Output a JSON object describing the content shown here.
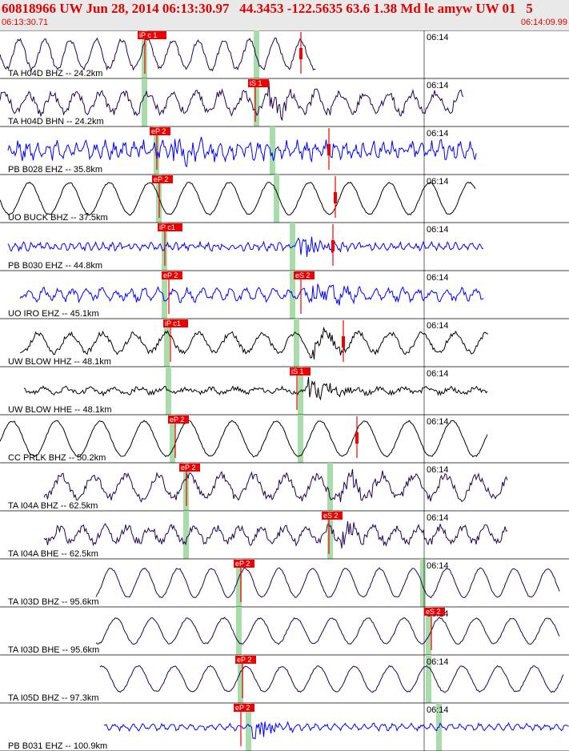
{
  "header": {
    "title": "60818966 UW Jun 28, 2014 06:13:30.97   44.3453 -122.5635 63.6 1.38 Md le amyw UW 01   5",
    "start_time": "06:13:30.71",
    "end_time": "06:14:09.99"
  },
  "time_mark": "06:14",
  "colors": {
    "header_bg": "#e9e9e9",
    "pick_red": "#ee0000",
    "window_green": "#a8dca8",
    "trace_blue": "#0000ff",
    "trace_purple": "#220055",
    "trace_black": "#000000"
  },
  "traces": [
    {
      "label": "TA H04D BHZ -- 24.2km",
      "color": "#220055",
      "period": 32,
      "amp": 18,
      "noise": 3,
      "start": 0,
      "end": 395,
      "picks": [
        {
          "label": "iP c 1",
          "x": 180,
          "w": 12
        },
        {
          "label": "",
          "x": 375,
          "w": 0
        }
      ],
      "windows": [
        180,
        320
      ],
      "burst": 0,
      "tmx": 530
    },
    {
      "label": "TA H04D BHN -- 24.2km",
      "color": "#220055",
      "period": 30,
      "amp": 12,
      "noise": 5,
      "start": 0,
      "end": 580,
      "picks": [
        {
          "label": "iS 1",
          "x": 318,
          "w": 12
        }
      ],
      "windows": [
        180,
        320
      ],
      "burst": 335,
      "tmx": 530
    },
    {
      "label": "PB B028 EHZ -- 35.8km",
      "color": "#0000ff",
      "period": 12,
      "amp": 7,
      "noise": 7,
      "start": 10,
      "end": 595,
      "picks": [
        {
          "label": "eP 2",
          "x": 195,
          "w": 12
        },
        {
          "label": "",
          "x": 410,
          "w": 0
        }
      ],
      "windows": [
        195,
        340
      ],
      "burst": 215,
      "tmx": 530
    },
    {
      "label": "UO BUCK BHZ -- 37.5km",
      "color": "#000000",
      "period": 50,
      "amp": 20,
      "noise": 1,
      "start": 0,
      "end": 595,
      "picks": [
        {
          "label": "eP 2",
          "x": 198,
          "w": 12
        },
        {
          "label": "",
          "x": 418,
          "w": 0
        }
      ],
      "windows": [
        198,
        345
      ],
      "burst": 0,
      "tmx": 530
    },
    {
      "label": "PB B030 EHZ -- 44.8km",
      "color": "#0000ff",
      "period": 10,
      "amp": 3,
      "noise": 3,
      "start": 10,
      "end": 605,
      "picks": [
        {
          "label": "iP c1",
          "x": 205,
          "w": 12
        },
        {
          "label": "",
          "x": 415,
          "w": 0
        }
      ],
      "windows": [
        205,
        365
      ],
      "burst": 370,
      "tmx": 530
    },
    {
      "label": "UO IRO EHZ -- 45.1km",
      "color": "#0000ff",
      "period": 18,
      "amp": 6,
      "noise": 4,
      "start": 25,
      "end": 605,
      "picks": [
        {
          "label": "eP 2",
          "x": 210,
          "w": 12
        },
        {
          "label": "eS 2",
          "x": 375,
          "w": 12
        }
      ],
      "windows": [
        205,
        365
      ],
      "burst": 390,
      "tmx": 530
    },
    {
      "label": "UW BLOW HHZ -- 48.1km",
      "color": "#000000",
      "period": 40,
      "amp": 12,
      "noise": 3,
      "start": 25,
      "end": 610,
      "picks": [
        {
          "label": "iP c1",
          "x": 212,
          "w": 12
        },
        {
          "label": "",
          "x": 428,
          "w": 0
        }
      ],
      "windows": [
        208,
        370
      ],
      "burst": 385,
      "tmx": 530
    },
    {
      "label": "UW BLOW HHE -- 48.1km",
      "color": "#000000",
      "period": 30,
      "amp": 3,
      "noise": 3,
      "start": 30,
      "end": 610,
      "picks": [
        {
          "label": "iS 1",
          "x": 370,
          "w": 12
        }
      ],
      "windows": [
        210,
        375
      ],
      "burst": 385,
      "tmx": 530
    },
    {
      "label": "CC PRLK BHZ -- 50.2km",
      "color": "#000000",
      "period": 55,
      "amp": 22,
      "noise": 1,
      "start": 0,
      "end": 610,
      "picks": [
        {
          "label": "eP 2",
          "x": 218,
          "w": 12
        },
        {
          "label": "",
          "x": 445,
          "w": 0
        }
      ],
      "windows": [
        215,
        375
      ],
      "burst": 0,
      "tmx": 530
    },
    {
      "label": "TA I04A BHZ -- 62.5km",
      "color": "#220055",
      "period": 40,
      "amp": 14,
      "noise": 5,
      "start": 55,
      "end": 635,
      "picks": [
        {
          "label": "eP 2",
          "x": 232,
          "w": 12
        }
      ],
      "windows": [
        232,
        412
      ],
      "burst": 425,
      "tmx": 530
    },
    {
      "label": "TA I04A BHE -- 62.5km",
      "color": "#220055",
      "period": 28,
      "amp": 9,
      "noise": 5,
      "start": 55,
      "end": 635,
      "picks": [
        {
          "label": "eS 2",
          "x": 410,
          "w": 12
        }
      ],
      "windows": [
        232,
        412
      ],
      "burst": 425,
      "tmx": 530
    },
    {
      "label": "TA I03D BHZ -- 95.6km",
      "color": "#220055",
      "period": 42,
      "amp": 18,
      "noise": 1,
      "start": 120,
      "end": 700,
      "picks": [
        {
          "label": "eP 2",
          "x": 300,
          "w": 12
        }
      ],
      "windows": [
        298,
        528
      ],
      "burst": 0,
      "tmx": 530
    },
    {
      "label": "TA I03D BHE -- 95.6km",
      "color": "#220055",
      "period": 45,
      "amp": 16,
      "noise": 1,
      "start": 120,
      "end": 700,
      "picks": [
        {
          "label": "eS 2",
          "x": 538,
          "w": 12
        }
      ],
      "windows": [
        298,
        535
      ],
      "burst": 0,
      "tmx": 530
    },
    {
      "label": "TA I05D BHZ -- 97.3km",
      "color": "#220055",
      "period": 45,
      "amp": 16,
      "noise": 1,
      "start": 125,
      "end": 705,
      "picks": [
        {
          "label": "eP 2",
          "x": 302,
          "w": 12
        }
      ],
      "windows": [
        300,
        535
      ],
      "burst": 0,
      "tmx": 530
    },
    {
      "label": "PB B031 EHZ -- 100.9km",
      "color": "#0000ff",
      "period": 12,
      "amp": 3,
      "noise": 2,
      "start": 130,
      "end": 711,
      "picks": [
        {
          "label": "eP 2",
          "x": 300,
          "w": 12
        }
      ],
      "windows": [
        310,
        548
      ],
      "burst": 315,
      "tmx": 530
    }
  ]
}
